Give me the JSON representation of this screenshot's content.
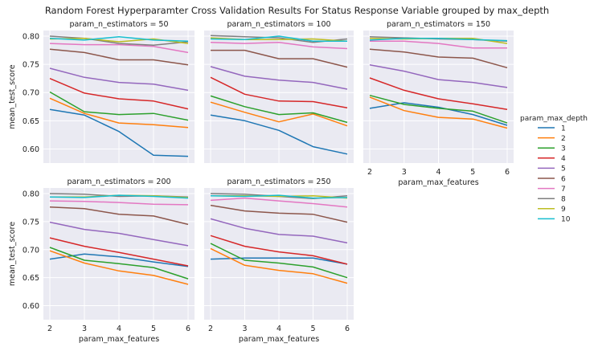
{
  "figure": {
    "title": "Random Forest Hyperparamter Cross Validation Results For Status Response Variable grouped by max_depth"
  },
  "legend": {
    "title": "param_max_depth"
  },
  "chart_data": {
    "type": "line",
    "xlabel": "param_max_features",
    "ylabel": "mean_test_score",
    "x": [
      2,
      3,
      4,
      5,
      6
    ],
    "ylim": [
      0.575,
      0.81
    ],
    "yticks": [
      0.6,
      0.65,
      0.7,
      0.75,
      0.8
    ],
    "grid": true,
    "legend_position": "right",
    "series_meta": [
      {
        "name": "1",
        "color": "#1f77b4"
      },
      {
        "name": "2",
        "color": "#ff7f0e"
      },
      {
        "name": "3",
        "color": "#2ca02c"
      },
      {
        "name": "4",
        "color": "#d62728"
      },
      {
        "name": "5",
        "color": "#9467bd"
      },
      {
        "name": "6",
        "color": "#8c564b"
      },
      {
        "name": "7",
        "color": "#e377c2"
      },
      {
        "name": "8",
        "color": "#7f7f7f"
      },
      {
        "name": "9",
        "color": "#bcbd22"
      },
      {
        "name": "10",
        "color": "#17becf"
      }
    ],
    "panels": [
      {
        "title": "param_n_estimators = 50",
        "show_ylabel": true,
        "show_yticks": true,
        "show_xticks": false,
        "show_xlabel": false,
        "series": [
          {
            "name": "1",
            "values": [
              0.67,
              0.66,
              0.631,
              0.589,
              0.587
            ]
          },
          {
            "name": "2",
            "values": [
              0.69,
              0.663,
              0.646,
              0.643,
              0.638
            ]
          },
          {
            "name": "3",
            "values": [
              0.701,
              0.666,
              0.661,
              0.663,
              0.651
            ]
          },
          {
            "name": "4",
            "values": [
              0.725,
              0.699,
              0.689,
              0.685,
              0.671
            ]
          },
          {
            "name": "5",
            "values": [
              0.743,
              0.727,
              0.718,
              0.715,
              0.704
            ]
          },
          {
            "name": "6",
            "values": [
              0.777,
              0.771,
              0.758,
              0.758,
              0.749
            ]
          },
          {
            "name": "7",
            "values": [
              0.787,
              0.785,
              0.785,
              0.782,
              0.771
            ]
          },
          {
            "name": "8",
            "values": [
              0.8,
              0.796,
              0.787,
              0.784,
              0.79
            ]
          },
          {
            "name": "9",
            "values": [
              0.795,
              0.796,
              0.79,
              0.795,
              0.787
            ]
          },
          {
            "name": "10",
            "values": [
              0.796,
              0.793,
              0.799,
              0.793,
              0.791
            ]
          }
        ]
      },
      {
        "title": "param_n_estimators = 100",
        "show_ylabel": false,
        "show_yticks": false,
        "show_xticks": false,
        "show_xlabel": false,
        "series": [
          {
            "name": "1",
            "values": [
              0.66,
              0.65,
              0.633,
              0.604,
              0.591
            ]
          },
          {
            "name": "2",
            "values": [
              0.683,
              0.665,
              0.648,
              0.662,
              0.641
            ]
          },
          {
            "name": "3",
            "values": [
              0.694,
              0.675,
              0.661,
              0.664,
              0.647
            ]
          },
          {
            "name": "4",
            "values": [
              0.727,
              0.697,
              0.685,
              0.684,
              0.673
            ]
          },
          {
            "name": "5",
            "values": [
              0.746,
              0.729,
              0.722,
              0.718,
              0.706
            ]
          },
          {
            "name": "6",
            "values": [
              0.775,
              0.775,
              0.76,
              0.76,
              0.745
            ]
          },
          {
            "name": "7",
            "values": [
              0.789,
              0.787,
              0.789,
              0.781,
              0.778
            ]
          },
          {
            "name": "8",
            "values": [
              0.801,
              0.799,
              0.797,
              0.789,
              0.795
            ]
          },
          {
            "name": "9",
            "values": [
              0.797,
              0.794,
              0.794,
              0.795,
              0.791
            ]
          },
          {
            "name": "10",
            "values": [
              0.795,
              0.794,
              0.8,
              0.791,
              0.791
            ]
          }
        ]
      },
      {
        "title": "param_n_estimators = 150",
        "show_ylabel": false,
        "show_yticks": false,
        "show_xticks": true,
        "show_xlabel": true,
        "series": [
          {
            "name": "1",
            "values": [
              0.672,
              0.682,
              0.674,
              0.661,
              0.642
            ]
          },
          {
            "name": "2",
            "values": [
              0.692,
              0.668,
              0.656,
              0.653,
              0.637
            ]
          },
          {
            "name": "3",
            "values": [
              0.695,
              0.679,
              0.672,
              0.667,
              0.646
            ]
          },
          {
            "name": "4",
            "values": [
              0.726,
              0.704,
              0.689,
              0.68,
              0.67
            ]
          },
          {
            "name": "5",
            "values": [
              0.749,
              0.738,
              0.723,
              0.718,
              0.709
            ]
          },
          {
            "name": "6",
            "values": [
              0.777,
              0.772,
              0.763,
              0.761,
              0.744
            ]
          },
          {
            "name": "7",
            "values": [
              0.791,
              0.791,
              0.787,
              0.779,
              0.779
            ]
          },
          {
            "name": "8",
            "values": [
              0.799,
              0.797,
              0.795,
              0.794,
              0.791
            ]
          },
          {
            "name": "9",
            "values": [
              0.796,
              0.795,
              0.796,
              0.796,
              0.787
            ]
          },
          {
            "name": "10",
            "values": [
              0.793,
              0.796,
              0.796,
              0.794,
              0.792
            ]
          }
        ]
      },
      {
        "title": "param_n_estimators = 200",
        "show_ylabel": true,
        "show_yticks": true,
        "show_xticks": true,
        "show_xlabel": true,
        "series": [
          {
            "name": "1",
            "values": [
              0.683,
              0.692,
              0.687,
              0.678,
              0.67
            ]
          },
          {
            "name": "2",
            "values": [
              0.698,
              0.676,
              0.662,
              0.654,
              0.638
            ]
          },
          {
            "name": "3",
            "values": [
              0.704,
              0.681,
              0.675,
              0.668,
              0.648
            ]
          },
          {
            "name": "4",
            "values": [
              0.721,
              0.706,
              0.695,
              0.683,
              0.671
            ]
          },
          {
            "name": "5",
            "values": [
              0.749,
              0.736,
              0.729,
              0.718,
              0.707
            ]
          },
          {
            "name": "6",
            "values": [
              0.776,
              0.773,
              0.763,
              0.76,
              0.745
            ]
          },
          {
            "name": "7",
            "values": [
              0.787,
              0.786,
              0.784,
              0.781,
              0.78
            ]
          },
          {
            "name": "8",
            "values": [
              0.8,
              0.799,
              0.795,
              0.796,
              0.794
            ]
          },
          {
            "name": "9",
            "values": [
              0.794,
              0.794,
              0.797,
              0.796,
              0.793
            ]
          },
          {
            "name": "10",
            "values": [
              0.794,
              0.793,
              0.797,
              0.795,
              0.792
            ]
          }
        ]
      },
      {
        "title": "param_n_estimators = 250",
        "show_ylabel": false,
        "show_yticks": false,
        "show_xticks": true,
        "show_xlabel": true,
        "series": [
          {
            "name": "1",
            "values": [
              0.683,
              0.685,
              0.685,
              0.685,
              0.674
            ]
          },
          {
            "name": "2",
            "values": [
              0.702,
              0.672,
              0.663,
              0.657,
              0.64
            ]
          },
          {
            "name": "3",
            "values": [
              0.711,
              0.681,
              0.676,
              0.669,
              0.65
            ]
          },
          {
            "name": "4",
            "values": [
              0.725,
              0.706,
              0.696,
              0.689,
              0.674
            ]
          },
          {
            "name": "5",
            "values": [
              0.755,
              0.738,
              0.727,
              0.724,
              0.712
            ]
          },
          {
            "name": "6",
            "values": [
              0.779,
              0.769,
              0.765,
              0.763,
              0.749
            ]
          },
          {
            "name": "7",
            "values": [
              0.788,
              0.792,
              0.787,
              0.782,
              0.776
            ]
          },
          {
            "name": "8",
            "values": [
              0.8,
              0.799,
              0.795,
              0.791,
              0.796
            ]
          },
          {
            "name": "9",
            "values": [
              0.796,
              0.796,
              0.795,
              0.796,
              0.792
            ]
          },
          {
            "name": "10",
            "values": [
              0.796,
              0.795,
              0.797,
              0.792,
              0.793
            ]
          }
        ]
      }
    ]
  }
}
